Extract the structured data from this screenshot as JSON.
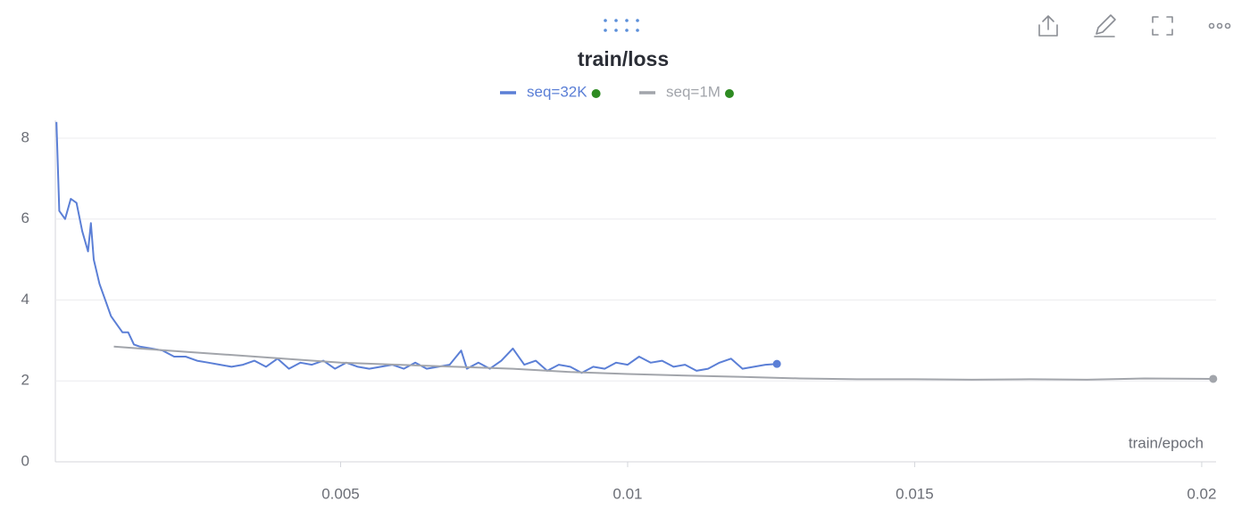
{
  "chart_data": {
    "type": "line",
    "title": "train/loss",
    "x_label": "train/epoch",
    "xlim": [
      0,
      0.02025
    ],
    "xticks": [
      0.005,
      0.01,
      0.015,
      0.02
    ],
    "ylim": [
      0,
      8.44
    ],
    "yticks": [
      0,
      2,
      4,
      6,
      8
    ],
    "grid": true,
    "series": [
      {
        "name": "seq=32K",
        "color": "#5b7fd6",
        "x": [
          5e-05,
          0.0001,
          0.0002,
          0.0003,
          0.0004,
          0.0005,
          0.0006,
          0.00065,
          0.0007,
          0.0008,
          0.0009,
          0.001,
          0.0011,
          0.0012,
          0.0013,
          0.0014,
          0.0015,
          0.0017,
          0.0019,
          0.0021,
          0.0023,
          0.0025,
          0.0027,
          0.0029,
          0.0031,
          0.0033,
          0.0035,
          0.0037,
          0.0039,
          0.0041,
          0.0043,
          0.0045,
          0.0047,
          0.0049,
          0.0051,
          0.0053,
          0.0055,
          0.0057,
          0.0059,
          0.0061,
          0.0063,
          0.0065,
          0.0067,
          0.0069,
          0.0071,
          0.0072,
          0.0074,
          0.0076,
          0.0078,
          0.008,
          0.0082,
          0.0084,
          0.0086,
          0.0088,
          0.009,
          0.0092,
          0.0094,
          0.0096,
          0.0098,
          0.01,
          0.0102,
          0.0104,
          0.0106,
          0.0108,
          0.011,
          0.0112,
          0.0114,
          0.0116,
          0.0118,
          0.012,
          0.0122,
          0.0124,
          0.0126
        ],
        "values": [
          8.4,
          6.2,
          6.0,
          6.5,
          6.4,
          5.7,
          5.2,
          5.9,
          5.0,
          4.4,
          4.0,
          3.6,
          3.4,
          3.2,
          3.2,
          2.9,
          2.85,
          2.8,
          2.75,
          2.6,
          2.6,
          2.5,
          2.45,
          2.4,
          2.35,
          2.4,
          2.5,
          2.35,
          2.55,
          2.3,
          2.45,
          2.4,
          2.5,
          2.3,
          2.45,
          2.35,
          2.3,
          2.35,
          2.4,
          2.3,
          2.45,
          2.3,
          2.35,
          2.4,
          2.75,
          2.3,
          2.45,
          2.3,
          2.5,
          2.8,
          2.4,
          2.5,
          2.25,
          2.4,
          2.35,
          2.2,
          2.35,
          2.3,
          2.45,
          2.4,
          2.6,
          2.45,
          2.5,
          2.35,
          2.4,
          2.25,
          2.3,
          2.45,
          2.55,
          2.3,
          2.35,
          2.4,
          2.42
        ]
      },
      {
        "name": "seq=1M",
        "color": "#a2a5ab",
        "x": [
          0.00105,
          0.002,
          0.003,
          0.004,
          0.005,
          0.006,
          0.007,
          0.008,
          0.009,
          0.01,
          0.011,
          0.012,
          0.013,
          0.014,
          0.015,
          0.016,
          0.017,
          0.018,
          0.019,
          0.0202
        ],
        "values": [
          2.85,
          2.75,
          2.65,
          2.55,
          2.45,
          2.4,
          2.35,
          2.3,
          2.22,
          2.17,
          2.13,
          2.1,
          2.06,
          2.04,
          2.04,
          2.03,
          2.04,
          2.03,
          2.06,
          2.05
        ]
      }
    ]
  }
}
